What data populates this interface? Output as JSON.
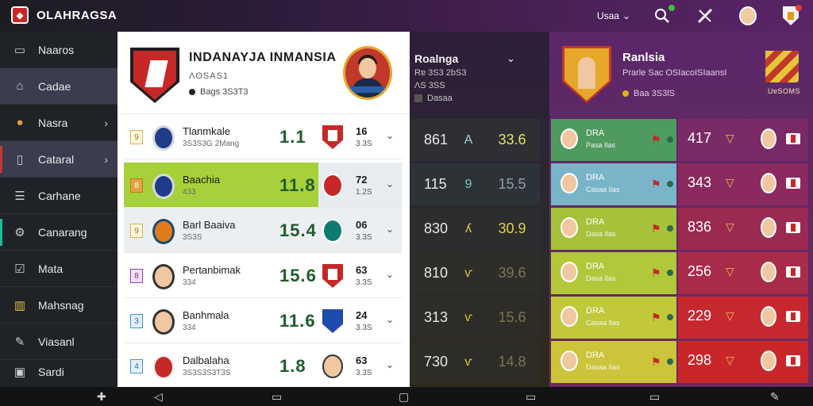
{
  "app": {
    "title": "OLAHRAGSA",
    "logo_letter": "◆"
  },
  "topbar": {
    "selector_label": "Usaa",
    "icons": [
      "search-icon",
      "tools-icon",
      "avatar-icon",
      "shield-icon"
    ]
  },
  "sidebar": {
    "items": [
      {
        "label": "Naaros",
        "icon": "window-icon",
        "chevron": false
      },
      {
        "label": "Cadae",
        "icon": "home-icon",
        "chevron": false
      },
      {
        "label": "Nasra",
        "icon": "ball-icon",
        "chevron": true
      },
      {
        "label": "Cataral",
        "icon": "document-icon",
        "chevron": true
      },
      {
        "label": "Carhane",
        "icon": "list-icon",
        "chevron": false
      },
      {
        "label": "Canarang",
        "icon": "gear-icon",
        "chevron": false
      },
      {
        "label": "Mata",
        "icon": "check-icon",
        "chevron": false
      },
      {
        "label": "Mahsnag",
        "icon": "chart-icon",
        "chevron": false
      },
      {
        "label": "Viasanl",
        "icon": "pen-icon",
        "chevron": false
      },
      {
        "label": "Sardi",
        "icon": "bag-icon",
        "chevron": false
      }
    ]
  },
  "team": {
    "title": "INDANAYJA INMANSIA",
    "subtitle": "ɅʘSAS1",
    "meta": "Bags 3S3T3"
  },
  "matches": [
    {
      "num": "9",
      "name": "Tlanmkale",
      "sub": "3S3S3G 2Mang",
      "score": "1.1",
      "value": "16",
      "pct": "3.3S",
      "style": "plain",
      "num_style": "gold",
      "crest": "blue",
      "opp": "shield"
    },
    {
      "num": "8",
      "name": "Baachia",
      "sub": "433",
      "score": "11.8",
      "value": "72",
      "pct": "1.2S",
      "style": "hl",
      "num_style": "gold",
      "crest": "blue",
      "opp": "round-red"
    },
    {
      "num": "9",
      "name": "Barl Baaiva",
      "sub": "3S3S",
      "score": "15.4",
      "value": "06",
      "pct": "3.3S",
      "style": "grey",
      "num_style": "gold",
      "crest": "orange",
      "opp": "round-teal"
    },
    {
      "num": "8",
      "name": "Pertanbimak",
      "sub": "334",
      "score": "15.6",
      "value": "63",
      "pct": "3.3S",
      "style": "plain",
      "num_style": "purple",
      "crest": "face",
      "opp": "shield"
    },
    {
      "num": "3",
      "name": "Banhmala",
      "sub": "334",
      "score": "11.6",
      "value": "24",
      "pct": "3.3S",
      "style": "plain",
      "num_style": "blue",
      "crest": "face",
      "opp": "round-blue"
    },
    {
      "num": "4",
      "name": "Dalbalaha",
      "sub": "3S3S3S3T3S",
      "score": "1.8",
      "value": "63",
      "pct": "3.3S",
      "style": "plain",
      "num_style": "blue",
      "crest": "red",
      "opp": "face"
    }
  ],
  "mid": {
    "title": "Roalnga",
    "sub1": "Rɐ 3S3 2bS3",
    "sub2": "ɅS 3SS",
    "tag": "Dasaa",
    "rows": [
      {
        "a": "861",
        "b": "A",
        "c": "33.6",
        "bg": "#2f2f33",
        "b_color": "#9ad0e6",
        "c_color": "#e0e36a"
      },
      {
        "a": "115",
        "b": "9",
        "c": "15.5",
        "bg": "#2c3236",
        "b_color": "#7ac9c0",
        "c_color": "#8aa0b0"
      },
      {
        "a": "830",
        "b": "ʎ",
        "c": "30.9",
        "bg": "#2b2d2e",
        "b_color": "#e0d24a",
        "c_color": "#e0d24a"
      },
      {
        "a": "810",
        "b": "ⱱ",
        "c": "39.6",
        "bg": "#2e2d2a",
        "b_color": "#d6c83a",
        "c_color": "#7e7454"
      },
      {
        "a": "313",
        "b": "ⱱ",
        "c": "15.6",
        "bg": "#2d2c28",
        "b_color": "#d6c83a",
        "c_color": "#7e7454"
      },
      {
        "a": "730",
        "b": "ⱱ",
        "c": "14.8",
        "bg": "#2e2c27",
        "b_color": "#d6c83a",
        "c_color": "#7e7454"
      }
    ]
  },
  "right": {
    "title": "Ranlsia",
    "sub": "Prarle Sac OSIacoISIaansI",
    "meta": "Baa 3S3lS",
    "flag_caption": "UɐSOMS",
    "rows": [
      {
        "name": "DRA",
        "sub": "Pasa Ilas",
        "value": "417",
        "left_bg": "#4f9a5e",
        "right_bg": "#7a2a66"
      },
      {
        "name": "DRA",
        "sub": "Casaa Ilas",
        "value": "343",
        "left_bg": "#7ab4c8",
        "right_bg": "#8a2a5e"
      },
      {
        "name": "DRA",
        "sub": "Dasa Ilas",
        "value": "836",
        "left_bg": "#a6c23a",
        "right_bg": "#9a2a52"
      },
      {
        "name": "DRA",
        "sub": "Dasa Ilas",
        "value": "256",
        "left_bg": "#b2c73a",
        "right_bg": "#a82b4a"
      },
      {
        "name": "DRA",
        "sub": "Casaa Ilas",
        "value": "229",
        "left_bg": "#c1c83a",
        "right_bg": "#c6282e"
      },
      {
        "name": "DRA",
        "sub": "Dasaa Ilas",
        "value": "298",
        "left_bg": "#ccc43a",
        "right_bg": "#c9262a"
      }
    ]
  },
  "bottom": {
    "icons": [
      "puzzle-icon",
      "back-icon",
      "home-nav-icon",
      "bag-nav-icon",
      "window-nav-icon",
      "square-nav-icon",
      "pen-nav-icon"
    ]
  },
  "colors": {
    "accent_green": "#a6d13a",
    "brand_red": "#c62828",
    "purple": "#5b2768"
  }
}
